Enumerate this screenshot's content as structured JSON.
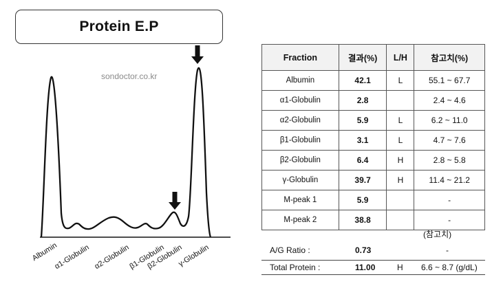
{
  "title": "Protein E.P",
  "watermark": "sondoctor.co.kr",
  "electrophoresis": {
    "fractions": [
      "Albumin",
      "α1-Globulin",
      "α2-Globulin",
      "β1-Globulin",
      "β2-Globulin",
      "γ-Globulin"
    ],
    "arrow_icons": [
      "down-arrow-icon",
      "down-arrow-icon"
    ],
    "line_color": "#111111"
  },
  "table": {
    "headers": [
      "Fraction",
      "결과(%)",
      "L/H",
      "참고치(%)"
    ],
    "rows": [
      {
        "fraction": "Albumin",
        "result": "42.1",
        "lh": "L",
        "ref": "55.1 ~ 67.7"
      },
      {
        "fraction": "α1-Globulin",
        "result": "2.8",
        "lh": "",
        "ref": "2.4 ~ 4.6"
      },
      {
        "fraction": "α2-Globulin",
        "result": "5.9",
        "lh": "L",
        "ref": "6.2 ~ 11.0"
      },
      {
        "fraction": "β1-Globulin",
        "result": "3.1",
        "lh": "L",
        "ref": "4.7 ~ 7.6"
      },
      {
        "fraction": "β2-Globulin",
        "result": "6.4",
        "lh": "H",
        "ref": "2.8 ~ 5.8"
      },
      {
        "fraction": "γ-Globulin",
        "result": "39.7",
        "lh": "H",
        "ref": "11.4 ~ 21.2"
      },
      {
        "fraction": "M-peak 1",
        "result": "5.9",
        "lh": "",
        "ref": "-"
      },
      {
        "fraction": "M-peak 2",
        "result": "38.8",
        "lh": "",
        "ref": "-"
      }
    ]
  },
  "ref_caption": "(참고치)",
  "ag_ratio": {
    "label": "A/G Ratio :",
    "value": "0.73",
    "lh": "",
    "ref": "-"
  },
  "total_protein": {
    "label": "Total Protein :",
    "value": "11.00",
    "lh": "H",
    "ref": "6.6 ~ 8.7 (g/dL)"
  }
}
